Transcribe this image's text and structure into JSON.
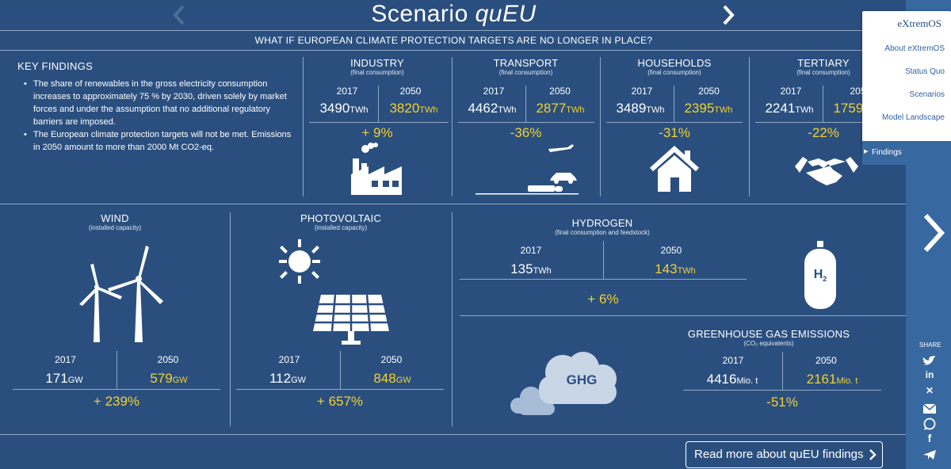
{
  "header": {
    "title_prefix": "Scenario ",
    "title_italic": "quEU",
    "subtitle": "WHAT IF EUROPEAN CLIMATE PROTECTION TARGETS ARE NO LONGER IN PLACE?"
  },
  "key_findings": {
    "title": "KEY FINDINGS",
    "items": [
      "The share of renewables in the gross electricity consumption increases to approximately 75 % by 2030, driven solely by market forces and under the assumption that no additional regulatory barriers are imposed.",
      "The European climate protection targets will not be met. Emissions in 2050 amount to more than 2000 Mt CO2-eq."
    ]
  },
  "sectors": [
    {
      "title": "INDUSTRY",
      "sub": "(final consumption)",
      "y1": "2017",
      "y2": "2050",
      "v1": "3490",
      "v2": "3820",
      "unit": "TWh",
      "change": "+ 9%"
    },
    {
      "title": "TRANSPORT",
      "sub": "(final consumption)",
      "y1": "2017",
      "y2": "2050",
      "v1": "4462",
      "v2": "2877",
      "unit": "TWh",
      "change": "-36%"
    },
    {
      "title": "HOUSEHOLDS",
      "sub": "(final consumption)",
      "y1": "2017",
      "y2": "2050",
      "v1": "3489",
      "v2": "2395",
      "unit": "TWh",
      "change": "-31%"
    },
    {
      "title": "TERTIARY",
      "sub": "(final consumption)",
      "y1": "2017",
      "y2": "205",
      "v1": "2241",
      "v2": "1759",
      "unit": "TWh",
      "change": "-22%"
    }
  ],
  "wind": {
    "title": "WIND",
    "sub": "(installed capacity)",
    "y1": "2017",
    "y2": "2050",
    "v1": "171",
    "v2": "579",
    "unit": "GW",
    "change": "+ 239%"
  },
  "pv": {
    "title": "PHOTOVOLTAIC",
    "sub": "(installed capacity)",
    "y1": "2017",
    "y2": "2050",
    "v1": "112",
    "v2": "848",
    "unit": "GW",
    "change": "+ 657%"
  },
  "hydrogen": {
    "title": "HYDROGEN",
    "sub": "(final consumption and feedstock)",
    "y1": "2017",
    "y2": "2050",
    "v1": "135",
    "v2": "143",
    "unit": "TWh",
    "change": "+ 6%",
    "icon_text": "H",
    "icon_sub": "2"
  },
  "ghg": {
    "title": "GREENHOUSE GAS EMISSIONS",
    "sub": "(CO₂ equivalents)",
    "y1": "2017",
    "y2": "2050",
    "v1": "4416",
    "v2": "2161",
    "unit": "Mio. t",
    "change": "-51%",
    "icon_text": "GHG"
  },
  "menu": {
    "logo": "eXtremOS",
    "items": [
      "About eXtremOS",
      "Status Quo",
      "Scenarios",
      "Model Landscape"
    ],
    "active": "Findings"
  },
  "share": {
    "label": "SHARE",
    "icons": [
      "twitter-icon",
      "linkedin-icon",
      "xing-icon",
      "email-icon",
      "whatsapp-icon",
      "facebook-icon",
      "telegram-icon"
    ]
  },
  "readmore": {
    "label": "Read more about quEU findings"
  },
  "colors": {
    "background": "#2a4f7f",
    "accent": "#f2d22e",
    "sidebar": "#3868a0"
  }
}
